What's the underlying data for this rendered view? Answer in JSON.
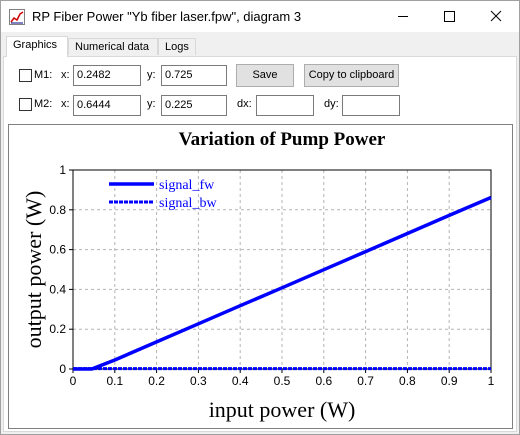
{
  "window": {
    "title": "RP Fiber Power \"Yb fiber laser.fpw\", diagram 3",
    "minimize_glyph": "—",
    "close_glyph": "✕"
  },
  "tabs": [
    {
      "label": "Graphics",
      "active": true
    },
    {
      "label": "Numerical data",
      "active": false
    },
    {
      "label": "Logs",
      "active": false
    }
  ],
  "markers": {
    "m1": {
      "label": "M1:",
      "x_label": "x:",
      "x_value": "0.2482",
      "y_label": "y:",
      "y_value": "0.725",
      "checked": false
    },
    "m2": {
      "label": "M2:",
      "x_label": "x:",
      "x_value": "0.6444",
      "y_label": "y:",
      "y_value": "0.225",
      "checked": false
    },
    "dx_label": "dx:",
    "dx_value": "",
    "dy_label": "dy:",
    "dy_value": ""
  },
  "buttons": {
    "save_label": "Save",
    "copy_label": "Copy to clipboard"
  },
  "chart_data": {
    "type": "line",
    "title": "Variation of Pump Power",
    "xlabel": "input power (W)",
    "ylabel": "output power (W)",
    "xlim": [
      0,
      1
    ],
    "ylim": [
      0,
      1
    ],
    "xticks": [
      "0",
      "0.1",
      "0.2",
      "0.3",
      "0.4",
      "0.5",
      "0.6",
      "0.7",
      "0.8",
      "0.9",
      "1"
    ],
    "yticks": [
      "0",
      "0.2",
      "0.4",
      "0.6",
      "0.8",
      "1"
    ],
    "grid": true,
    "legend_position": "top-left",
    "series": [
      {
        "name": "signal_fw",
        "style": "solid",
        "color": "#0000ff",
        "x": [
          0,
          0.045,
          0.1,
          0.2,
          0.3,
          0.4,
          0.5,
          0.6,
          0.7,
          0.8,
          0.9,
          1.0
        ],
        "y": [
          0,
          0,
          0.045,
          0.136,
          0.227,
          0.318,
          0.408,
          0.499,
          0.59,
          0.681,
          0.772,
          0.862
        ]
      },
      {
        "name": "signal_bw",
        "style": "dashed",
        "color": "#0000ff",
        "x": [
          0,
          1.0
        ],
        "y": [
          0.002,
          0.002
        ]
      }
    ]
  }
}
